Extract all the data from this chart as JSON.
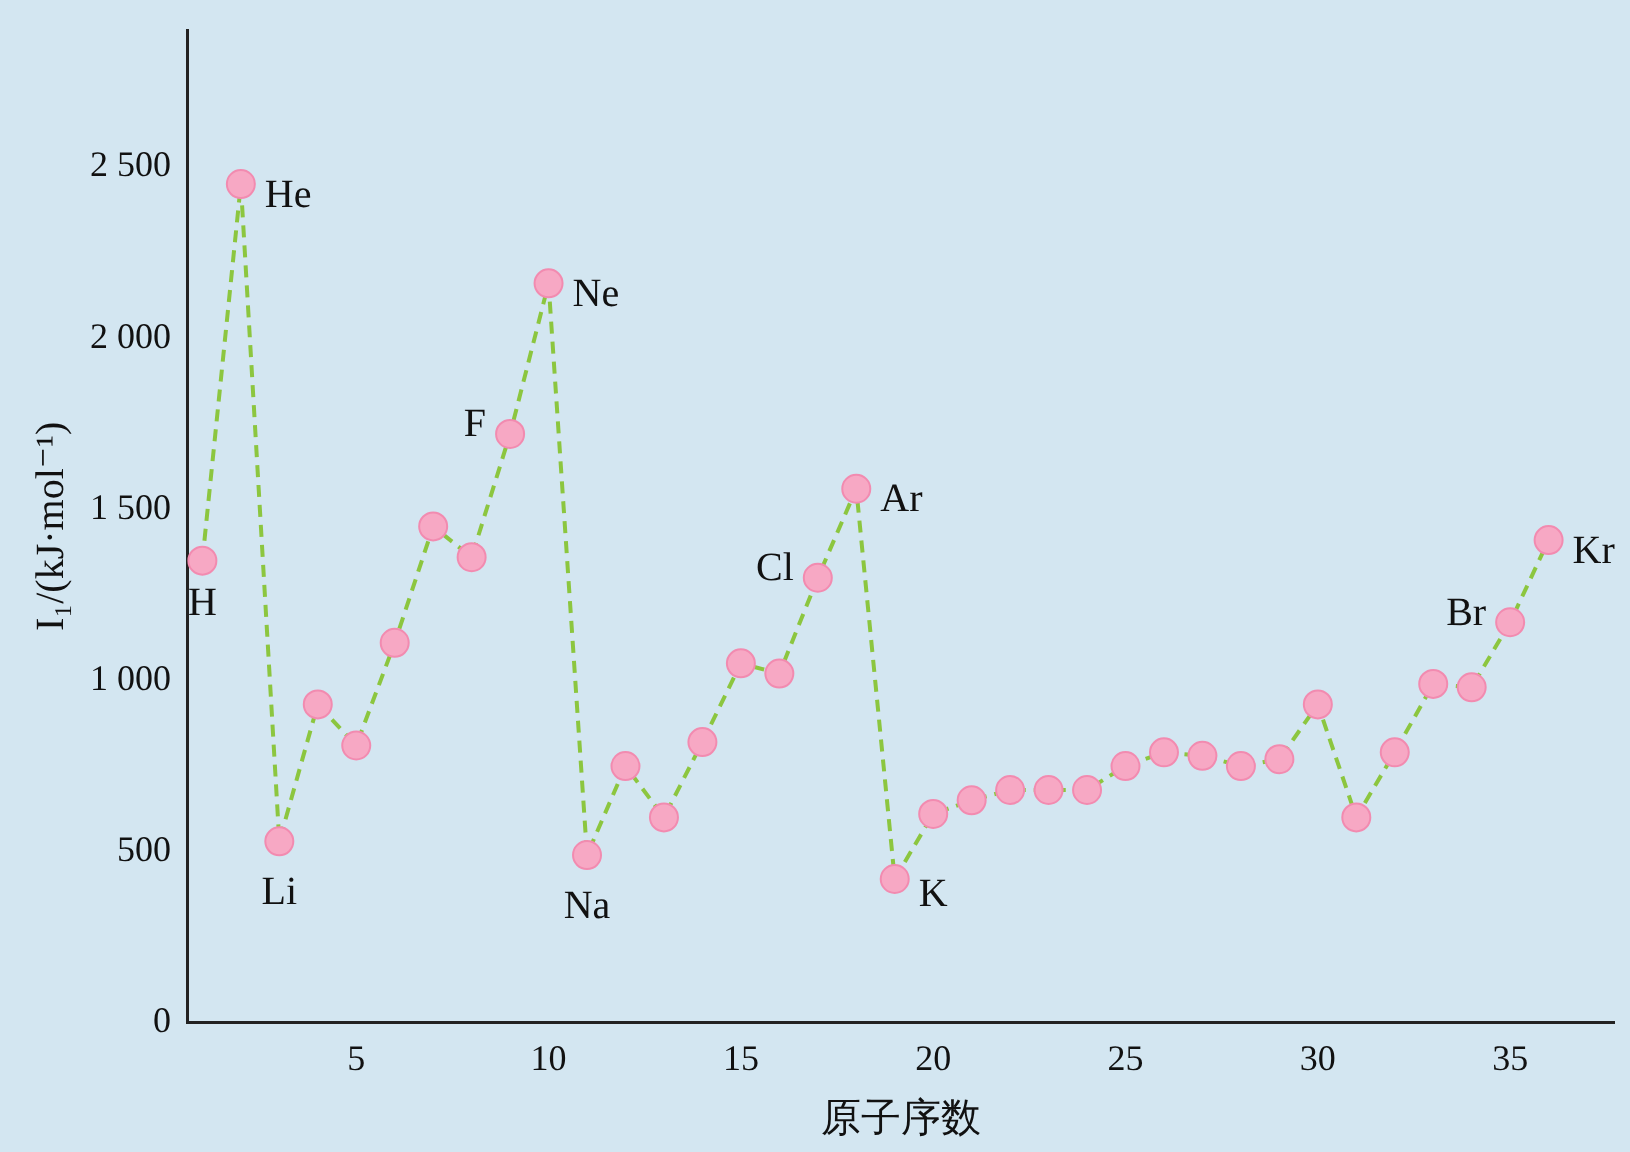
{
  "chart_data": {
    "type": "line",
    "xlabel": "原子序数",
    "ylabel": "I₁/(kJ·mol⁻¹)",
    "x": [
      1,
      2,
      3,
      4,
      5,
      6,
      7,
      8,
      9,
      10,
      11,
      12,
      13,
      14,
      15,
      16,
      17,
      18,
      19,
      20,
      21,
      22,
      23,
      24,
      25,
      26,
      27,
      28,
      29,
      30,
      31,
      32,
      33,
      34,
      35,
      36
    ],
    "series": [
      {
        "color": "#8cc63f",
        "values": [
          1350,
          2450,
          530,
          930,
          810,
          1110,
          1450,
          1360,
          1720,
          2160,
          490,
          750,
          600,
          820,
          1050,
          1020,
          1300,
          1560,
          420,
          610,
          650,
          680,
          680,
          680,
          750,
          790,
          780,
          750,
          770,
          930,
          600,
          790,
          990,
          980,
          1170,
          1410
        ]
      }
    ],
    "xlim": [
      0.6,
      37.7
    ],
    "xticks": [
      5,
      10,
      15,
      20,
      25,
      30,
      35
    ],
    "ylim": [
      0,
      2900
    ],
    "yticks": [
      0,
      500,
      {
        "value": 1000,
        "label": "1 000"
      },
      {
        "value": 1500,
        "label": "1 500"
      },
      {
        "value": 2000,
        "label": "2 000"
      },
      {
        "value": 2500,
        "label": "2 500"
      }
    ],
    "annotations": [
      {
        "text": "H",
        "x": 1,
        "y": 1350
      },
      {
        "text": "He",
        "x": 2,
        "y": 2450
      },
      {
        "text": "Li",
        "x": 3,
        "y": 530
      },
      {
        "text": "F",
        "x": 9,
        "y": 1720
      },
      {
        "text": "Ne",
        "x": 10,
        "y": 2160
      },
      {
        "text": "Na",
        "x": 11,
        "y": 490
      },
      {
        "text": "Cl",
        "x": 17,
        "y": 1300
      },
      {
        "text": "Ar",
        "x": 18,
        "y": 1560
      },
      {
        "text": "K",
        "x": 19,
        "y": 420
      },
      {
        "text": "Br",
        "x": 35,
        "y": 1170
      },
      {
        "text": "Kr",
        "x": 36,
        "y": 1410
      }
    ],
    "grid": false,
    "legend": false,
    "marker": "circle",
    "line_style": "dashed"
  }
}
